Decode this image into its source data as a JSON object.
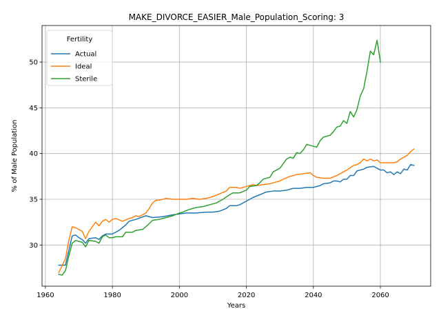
{
  "chart_data": {
    "type": "line",
    "title": "MAKE_DIVORCE_EASIER_Male_Population_Scoring: 3",
    "xlabel": "Years",
    "ylabel": "% of Male Population",
    "xlim": [
      1959,
      2075
    ],
    "ylim": [
      25.5,
      54.0
    ],
    "xticks": [
      1960,
      1980,
      2000,
      2020,
      2040,
      2060
    ],
    "yticks": [
      30,
      35,
      40,
      45,
      50
    ],
    "grid": true,
    "legend": {
      "title": "Fertility",
      "placement": "top-left"
    },
    "series": [
      {
        "name": "Actual",
        "color": "#1f77b4",
        "points": [
          [
            1964,
            27.8
          ],
          [
            1966,
            27.8
          ],
          [
            1968,
            31.0
          ],
          [
            1969,
            31.1
          ],
          [
            1970,
            30.8
          ],
          [
            1971,
            30.6
          ],
          [
            1972,
            30.2
          ],
          [
            1973,
            30.7
          ],
          [
            1975,
            30.8
          ],
          [
            1976,
            30.6
          ],
          [
            1977,
            31.0
          ],
          [
            1978,
            31.2
          ],
          [
            1980,
            31.2
          ],
          [
            1982,
            31.6
          ],
          [
            1984,
            32.2
          ],
          [
            1985,
            32.6
          ],
          [
            1987,
            32.8
          ],
          [
            1990,
            33.2
          ],
          [
            1992,
            33.0
          ],
          [
            1995,
            33.1
          ],
          [
            1998,
            33.3
          ],
          [
            2000,
            33.4
          ],
          [
            2002,
            33.5
          ],
          [
            2005,
            33.5
          ],
          [
            2008,
            33.6
          ],
          [
            2010,
            33.6
          ],
          [
            2012,
            33.7
          ],
          [
            2014,
            34.0
          ],
          [
            2015,
            34.3
          ],
          [
            2017,
            34.3
          ],
          [
            2018,
            34.4
          ],
          [
            2020,
            34.8
          ],
          [
            2022,
            35.2
          ],
          [
            2024,
            35.5
          ],
          [
            2026,
            35.8
          ],
          [
            2028,
            35.9
          ],
          [
            2030,
            35.9
          ],
          [
            2032,
            36.0
          ],
          [
            2034,
            36.2
          ],
          [
            2036,
            36.2
          ],
          [
            2038,
            36.3
          ],
          [
            2040,
            36.3
          ],
          [
            2042,
            36.5
          ],
          [
            2043,
            36.7
          ],
          [
            2045,
            36.8
          ],
          [
            2046,
            37.0
          ],
          [
            2047,
            37.0
          ],
          [
            2048,
            36.9
          ],
          [
            2049,
            37.2
          ],
          [
            2050,
            37.2
          ],
          [
            2051,
            37.6
          ],
          [
            2052,
            37.6
          ],
          [
            2053,
            38.1
          ],
          [
            2054,
            38.2
          ],
          [
            2055,
            38.3
          ],
          [
            2056,
            38.5
          ],
          [
            2058,
            38.6
          ],
          [
            2059,
            38.4
          ],
          [
            2060,
            38.2
          ],
          [
            2061,
            38.2
          ],
          [
            2062,
            37.9
          ],
          [
            2063,
            38.0
          ],
          [
            2064,
            37.7
          ],
          [
            2065,
            38.0
          ],
          [
            2066,
            37.8
          ],
          [
            2067,
            38.3
          ],
          [
            2068,
            38.2
          ],
          [
            2069,
            38.8
          ],
          [
            2070,
            38.7
          ]
        ]
      },
      {
        "name": "Ideal",
        "color": "#ff7f0e",
        "points": [
          [
            1964,
            27.0
          ],
          [
            1966,
            28.5
          ],
          [
            1967,
            30.5
          ],
          [
            1968,
            32.0
          ],
          [
            1969,
            31.9
          ],
          [
            1971,
            31.5
          ],
          [
            1972,
            30.7
          ],
          [
            1973,
            31.5
          ],
          [
            1975,
            32.5
          ],
          [
            1976,
            32.1
          ],
          [
            1977,
            32.6
          ],
          [
            1978,
            32.8
          ],
          [
            1979,
            32.5
          ],
          [
            1980,
            32.8
          ],
          [
            1981,
            32.9
          ],
          [
            1983,
            32.6
          ],
          [
            1985,
            32.9
          ],
          [
            1986,
            33.0
          ],
          [
            1987,
            33.2
          ],
          [
            1988,
            33.1
          ],
          [
            1990,
            33.5
          ],
          [
            1991,
            34.0
          ],
          [
            1992,
            34.6
          ],
          [
            1993,
            34.9
          ],
          [
            1994,
            34.9
          ],
          [
            1996,
            35.1
          ],
          [
            1998,
            35.0
          ],
          [
            2000,
            35.0
          ],
          [
            2002,
            35.0
          ],
          [
            2004,
            35.1
          ],
          [
            2006,
            35.0
          ],
          [
            2008,
            35.1
          ],
          [
            2010,
            35.3
          ],
          [
            2012,
            35.6
          ],
          [
            2014,
            35.9
          ],
          [
            2015,
            36.3
          ],
          [
            2017,
            36.3
          ],
          [
            2018,
            36.2
          ],
          [
            2020,
            36.4
          ],
          [
            2022,
            36.6
          ],
          [
            2023,
            36.5
          ],
          [
            2025,
            36.6
          ],
          [
            2027,
            36.7
          ],
          [
            2029,
            36.9
          ],
          [
            2030,
            37.0
          ],
          [
            2031,
            37.2
          ],
          [
            2033,
            37.5
          ],
          [
            2035,
            37.7
          ],
          [
            2037,
            37.8
          ],
          [
            2039,
            37.9
          ],
          [
            2040,
            37.6
          ],
          [
            2041,
            37.4
          ],
          [
            2043,
            37.3
          ],
          [
            2045,
            37.3
          ],
          [
            2047,
            37.6
          ],
          [
            2049,
            38.0
          ],
          [
            2050,
            38.2
          ],
          [
            2052,
            38.7
          ],
          [
            2053,
            38.8
          ],
          [
            2054,
            39.0
          ],
          [
            2055,
            39.4
          ],
          [
            2056,
            39.2
          ],
          [
            2057,
            39.4
          ],
          [
            2058,
            39.2
          ],
          [
            2059,
            39.3
          ],
          [
            2060,
            39.0
          ],
          [
            2062,
            39.0
          ],
          [
            2064,
            39.0
          ],
          [
            2065,
            39.1
          ],
          [
            2066,
            39.4
          ],
          [
            2068,
            39.8
          ],
          [
            2069,
            40.2
          ],
          [
            2070,
            40.5
          ]
        ]
      },
      {
        "name": "Sterile",
        "color": "#2ca02c",
        "points": [
          [
            1964,
            26.8
          ],
          [
            1965,
            26.7
          ],
          [
            1966,
            27.2
          ],
          [
            1967,
            28.8
          ],
          [
            1968,
            30.2
          ],
          [
            1969,
            30.5
          ],
          [
            1971,
            30.3
          ],
          [
            1972,
            29.8
          ],
          [
            1973,
            30.5
          ],
          [
            1975,
            30.4
          ],
          [
            1976,
            30.2
          ],
          [
            1977,
            30.9
          ],
          [
            1978,
            31.1
          ],
          [
            1979,
            30.8
          ],
          [
            1980,
            30.8
          ],
          [
            1981,
            30.9
          ],
          [
            1983,
            30.9
          ],
          [
            1984,
            31.4
          ],
          [
            1986,
            31.4
          ],
          [
            1987,
            31.6
          ],
          [
            1989,
            31.7
          ],
          [
            1990,
            32.0
          ],
          [
            1992,
            32.7
          ],
          [
            1994,
            32.8
          ],
          [
            1996,
            33.0
          ],
          [
            1998,
            33.2
          ],
          [
            2000,
            33.5
          ],
          [
            2001,
            33.6
          ],
          [
            2003,
            33.9
          ],
          [
            2005,
            34.1
          ],
          [
            2007,
            34.2
          ],
          [
            2009,
            34.4
          ],
          [
            2011,
            34.6
          ],
          [
            2013,
            35.0
          ],
          [
            2015,
            35.5
          ],
          [
            2016,
            35.7
          ],
          [
            2018,
            35.7
          ],
          [
            2020,
            36.0
          ],
          [
            2021,
            36.4
          ],
          [
            2023,
            36.5
          ],
          [
            2024,
            36.8
          ],
          [
            2025,
            37.2
          ],
          [
            2027,
            37.4
          ],
          [
            2028,
            38.0
          ],
          [
            2030,
            38.4
          ],
          [
            2031,
            38.9
          ],
          [
            2032,
            39.4
          ],
          [
            2033,
            39.6
          ],
          [
            2034,
            39.5
          ],
          [
            2035,
            40.1
          ],
          [
            2036,
            40.0
          ],
          [
            2037,
            40.4
          ],
          [
            2038,
            41.0
          ],
          [
            2040,
            40.8
          ],
          [
            2041,
            40.7
          ],
          [
            2042,
            41.4
          ],
          [
            2043,
            41.8
          ],
          [
            2045,
            42.0
          ],
          [
            2046,
            42.4
          ],
          [
            2047,
            42.9
          ],
          [
            2048,
            43.0
          ],
          [
            2049,
            43.6
          ],
          [
            2050,
            43.3
          ],
          [
            2051,
            44.6
          ],
          [
            2052,
            44.0
          ],
          [
            2053,
            44.8
          ],
          [
            2054,
            46.3
          ],
          [
            2055,
            47.1
          ],
          [
            2056,
            49.0
          ],
          [
            2057,
            51.2
          ],
          [
            2058,
            50.8
          ],
          [
            2059,
            52.4
          ],
          [
            2060,
            50.0
          ]
        ]
      }
    ]
  }
}
